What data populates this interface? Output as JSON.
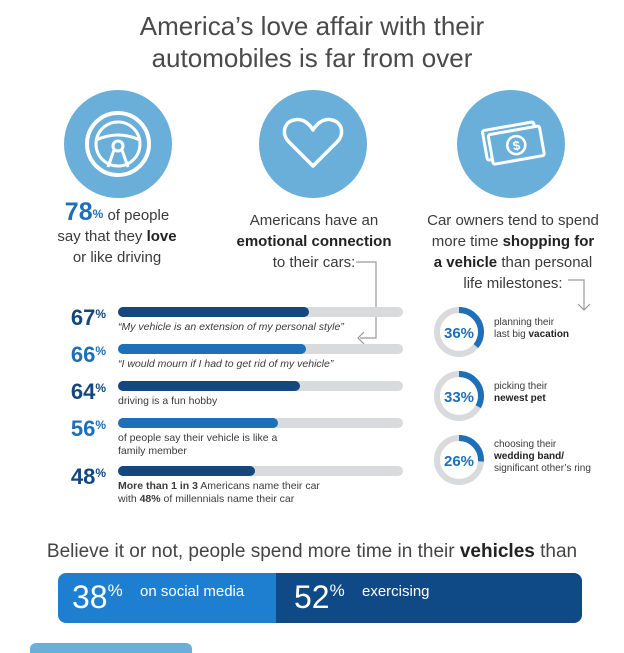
{
  "title": {
    "line1": "America’s love affair with their",
    "line2": "automobiles is far from over"
  },
  "icons": [
    "steering-wheel-icon",
    "heart-icon",
    "money-icon"
  ],
  "colors": {
    "light_blue": "#6aafd9",
    "dark_navy": "#14477f",
    "mid_blue": "#1d6fb8",
    "grey_track": "#d9dadb"
  },
  "col1": {
    "stat": "78",
    "pct": "%",
    "text1": "of people",
    "text2a": "say that they ",
    "text2b": "love",
    "text3": "or like driving"
  },
  "col2": {
    "line1": "Americans have an",
    "line2": "emotional connection",
    "line3": "to their cars:"
  },
  "col3": {
    "line1": "Car owners tend to spend",
    "line2a": "more time ",
    "line2b": "shopping for",
    "line3a": "a vehicle",
    "line3b": " than personal",
    "line4": "life milestones:"
  },
  "bars": [
    {
      "pct": "67",
      "value": 67,
      "color": "#14477f",
      "label": "“My vehicle is an extension of my personal style”"
    },
    {
      "pct": "66",
      "value": 66,
      "color": "#1d6fb8",
      "label": "“I would mourn if I had to get rid of my vehicle”"
    },
    {
      "pct": "64",
      "value": 64,
      "color": "#14477f",
      "label": "driving is a fun hobby"
    },
    {
      "pct": "56",
      "value": 56,
      "color": "#1d6fb8",
      "label1": "of people say their vehicle is like a",
      "label2": "family member"
    },
    {
      "pct": "48",
      "value": 48,
      "color": "#14477f",
      "label1a": "More than 1 in 3",
      "label1b": " Americans name their car",
      "label2a": "with ",
      "label2b": "48%",
      "label2c": " of millennials name their car"
    }
  ],
  "pct_symbol": "%",
  "donuts": [
    {
      "pct": "36%",
      "value": 36,
      "line1": "planning their",
      "line2a": "last big ",
      "line2b": "vacation"
    },
    {
      "pct": "33%",
      "value": 33,
      "line1": "picking their",
      "line2b": "newest pet"
    },
    {
      "pct": "26%",
      "value": 26,
      "line1": "choosing their",
      "line2b": "wedding band/",
      "line3": "significant other’s ring"
    }
  ],
  "bottom": {
    "text_a": "Believe it or not, people spend more time in their ",
    "text_b": "vehicles",
    "text_c": " than",
    "social_num": "38",
    "social_text": "on social media",
    "exercise_num": "52",
    "exercise_text": "exercising"
  }
}
